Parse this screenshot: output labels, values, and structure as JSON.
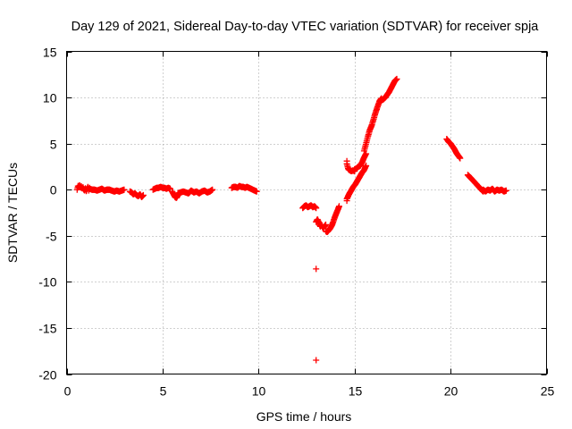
{
  "chart_data": {
    "type": "scatter",
    "title": "Day 129 of 2021, Sidereal Day-to-day VTEC variation (SDTVAR) for receiver spja",
    "xlabel": "GPS time / hours",
    "ylabel": "SDTVAR / TECUs",
    "xlim": [
      0,
      25
    ],
    "ylim": [
      -20,
      15
    ],
    "x_ticks": [
      "0",
      "5",
      "10",
      "15",
      "20",
      "25"
    ],
    "y_ticks": [
      "15",
      "10",
      "5",
      "0",
      "-5",
      "-10",
      "-15",
      "-20"
    ],
    "grid": true,
    "marker": "plus",
    "series_color": "#ff0000",
    "segments": [
      {
        "x0": 0.55,
        "x1": 1.2,
        "values": [
          0.0,
          0.4,
          0.3,
          0.5,
          0.2,
          0.4,
          0.1,
          0.3,
          0.0,
          -0.1,
          0.2,
          -0.2,
          0.1,
          0.3,
          -0.1,
          0.2
        ]
      },
      {
        "x0": 1.2,
        "x1": 3.0,
        "values": [
          0.1,
          0.0,
          0.0,
          -0.1,
          0.0,
          0.1,
          -0.1,
          0.0,
          0.0,
          -0.1,
          -0.2,
          -0.1,
          -0.2,
          -0.1,
          0.0
        ]
      },
      {
        "x0": 3.3,
        "x1": 4.0,
        "values": [
          -0.2,
          -0.3,
          -0.5,
          -0.4,
          -0.6,
          -0.7,
          -0.5,
          -0.8,
          -0.6
        ]
      },
      {
        "x0": 4.5,
        "x1": 5.4,
        "values": [
          0.0,
          0.1,
          0.2,
          0.2,
          0.3,
          0.2,
          0.2,
          0.1,
          0.2,
          0.1
        ]
      },
      {
        "x0": 5.5,
        "x1": 5.8,
        "values": [
          -0.2,
          -0.5,
          -0.8,
          -0.9,
          -0.6
        ]
      },
      {
        "x0": 5.8,
        "x1": 7.6,
        "values": [
          -0.4,
          -0.3,
          -0.2,
          -0.3,
          -0.4,
          -0.1,
          -0.3,
          -0.2,
          -0.4,
          -0.2,
          -0.1,
          -0.3,
          -0.2,
          0.0
        ]
      },
      {
        "x0": 8.6,
        "x1": 9.9,
        "values": [
          0.2,
          0.3,
          0.3,
          0.2,
          0.4,
          0.3,
          0.3,
          0.2,
          0.3,
          0.2,
          0.1,
          0.0,
          -0.1,
          -0.2
        ]
      },
      {
        "x0": 12.3,
        "x1": 13.0,
        "values": [
          -2.0,
          -1.8,
          -1.7,
          -1.9,
          -1.8,
          -1.7,
          -1.9,
          -1.8,
          -2.0
        ]
      },
      {
        "x0": 13.0,
        "x1": 13.5,
        "values": [
          -3.5,
          -3.2,
          -3.6,
          -4.0,
          -3.8,
          -4.2,
          -4.0,
          -3.8
        ]
      },
      {
        "x0": 13.5,
        "x1": 14.2,
        "values": [
          -4.5,
          -4.6,
          -4.4,
          -4.2,
          -3.9,
          -3.5,
          -3.0,
          -2.6,
          -2.2,
          -1.8
        ]
      },
      {
        "x0": 14.6,
        "x1": 15.0,
        "values": [
          2.8,
          2.2,
          2.1,
          2.0,
          2.1,
          2.0
        ]
      },
      {
        "x0": 15.0,
        "x1": 15.6,
        "values": [
          2.2,
          2.3,
          2.5,
          2.6,
          3.0,
          3.5,
          3.9
        ]
      },
      {
        "x0": 14.6,
        "x1": 15.6,
        "values": [
          -1.0,
          -0.5,
          -0.1,
          0.3,
          0.6,
          1.0,
          1.4,
          1.8,
          2.1,
          2.6
        ]
      },
      {
        "x0": 15.5,
        "x1": 16.4,
        "values": [
          4.2,
          5.0,
          5.8,
          6.5,
          7.0,
          7.7,
          8.4,
          9.0,
          9.6,
          9.9
        ]
      },
      {
        "x0": 16.4,
        "x1": 17.2,
        "values": [
          9.7,
          9.8,
          10.0,
          10.3,
          10.6,
          11.0,
          11.4,
          11.8,
          12.0
        ]
      },
      {
        "x0": 19.8,
        "x1": 20.5,
        "values": [
          5.5,
          5.2,
          5.0,
          4.7,
          4.4,
          4.0,
          3.7,
          3.4
        ]
      },
      {
        "x0": 20.9,
        "x1": 21.7,
        "values": [
          1.6,
          1.3,
          1.0,
          0.7,
          0.4,
          0.1,
          -0.2
        ]
      },
      {
        "x0": 21.7,
        "x1": 22.9,
        "values": [
          0.0,
          -0.2,
          0.0,
          -0.1,
          0.1,
          -0.2,
          0.0,
          -0.1,
          0.0,
          -0.2,
          -0.1
        ]
      }
    ],
    "points": [
      [
        13.0,
        -8.6
      ],
      [
        13.0,
        -18.5
      ],
      [
        14.6,
        3.1
      ],
      [
        14.6,
        -1.2
      ]
    ]
  }
}
